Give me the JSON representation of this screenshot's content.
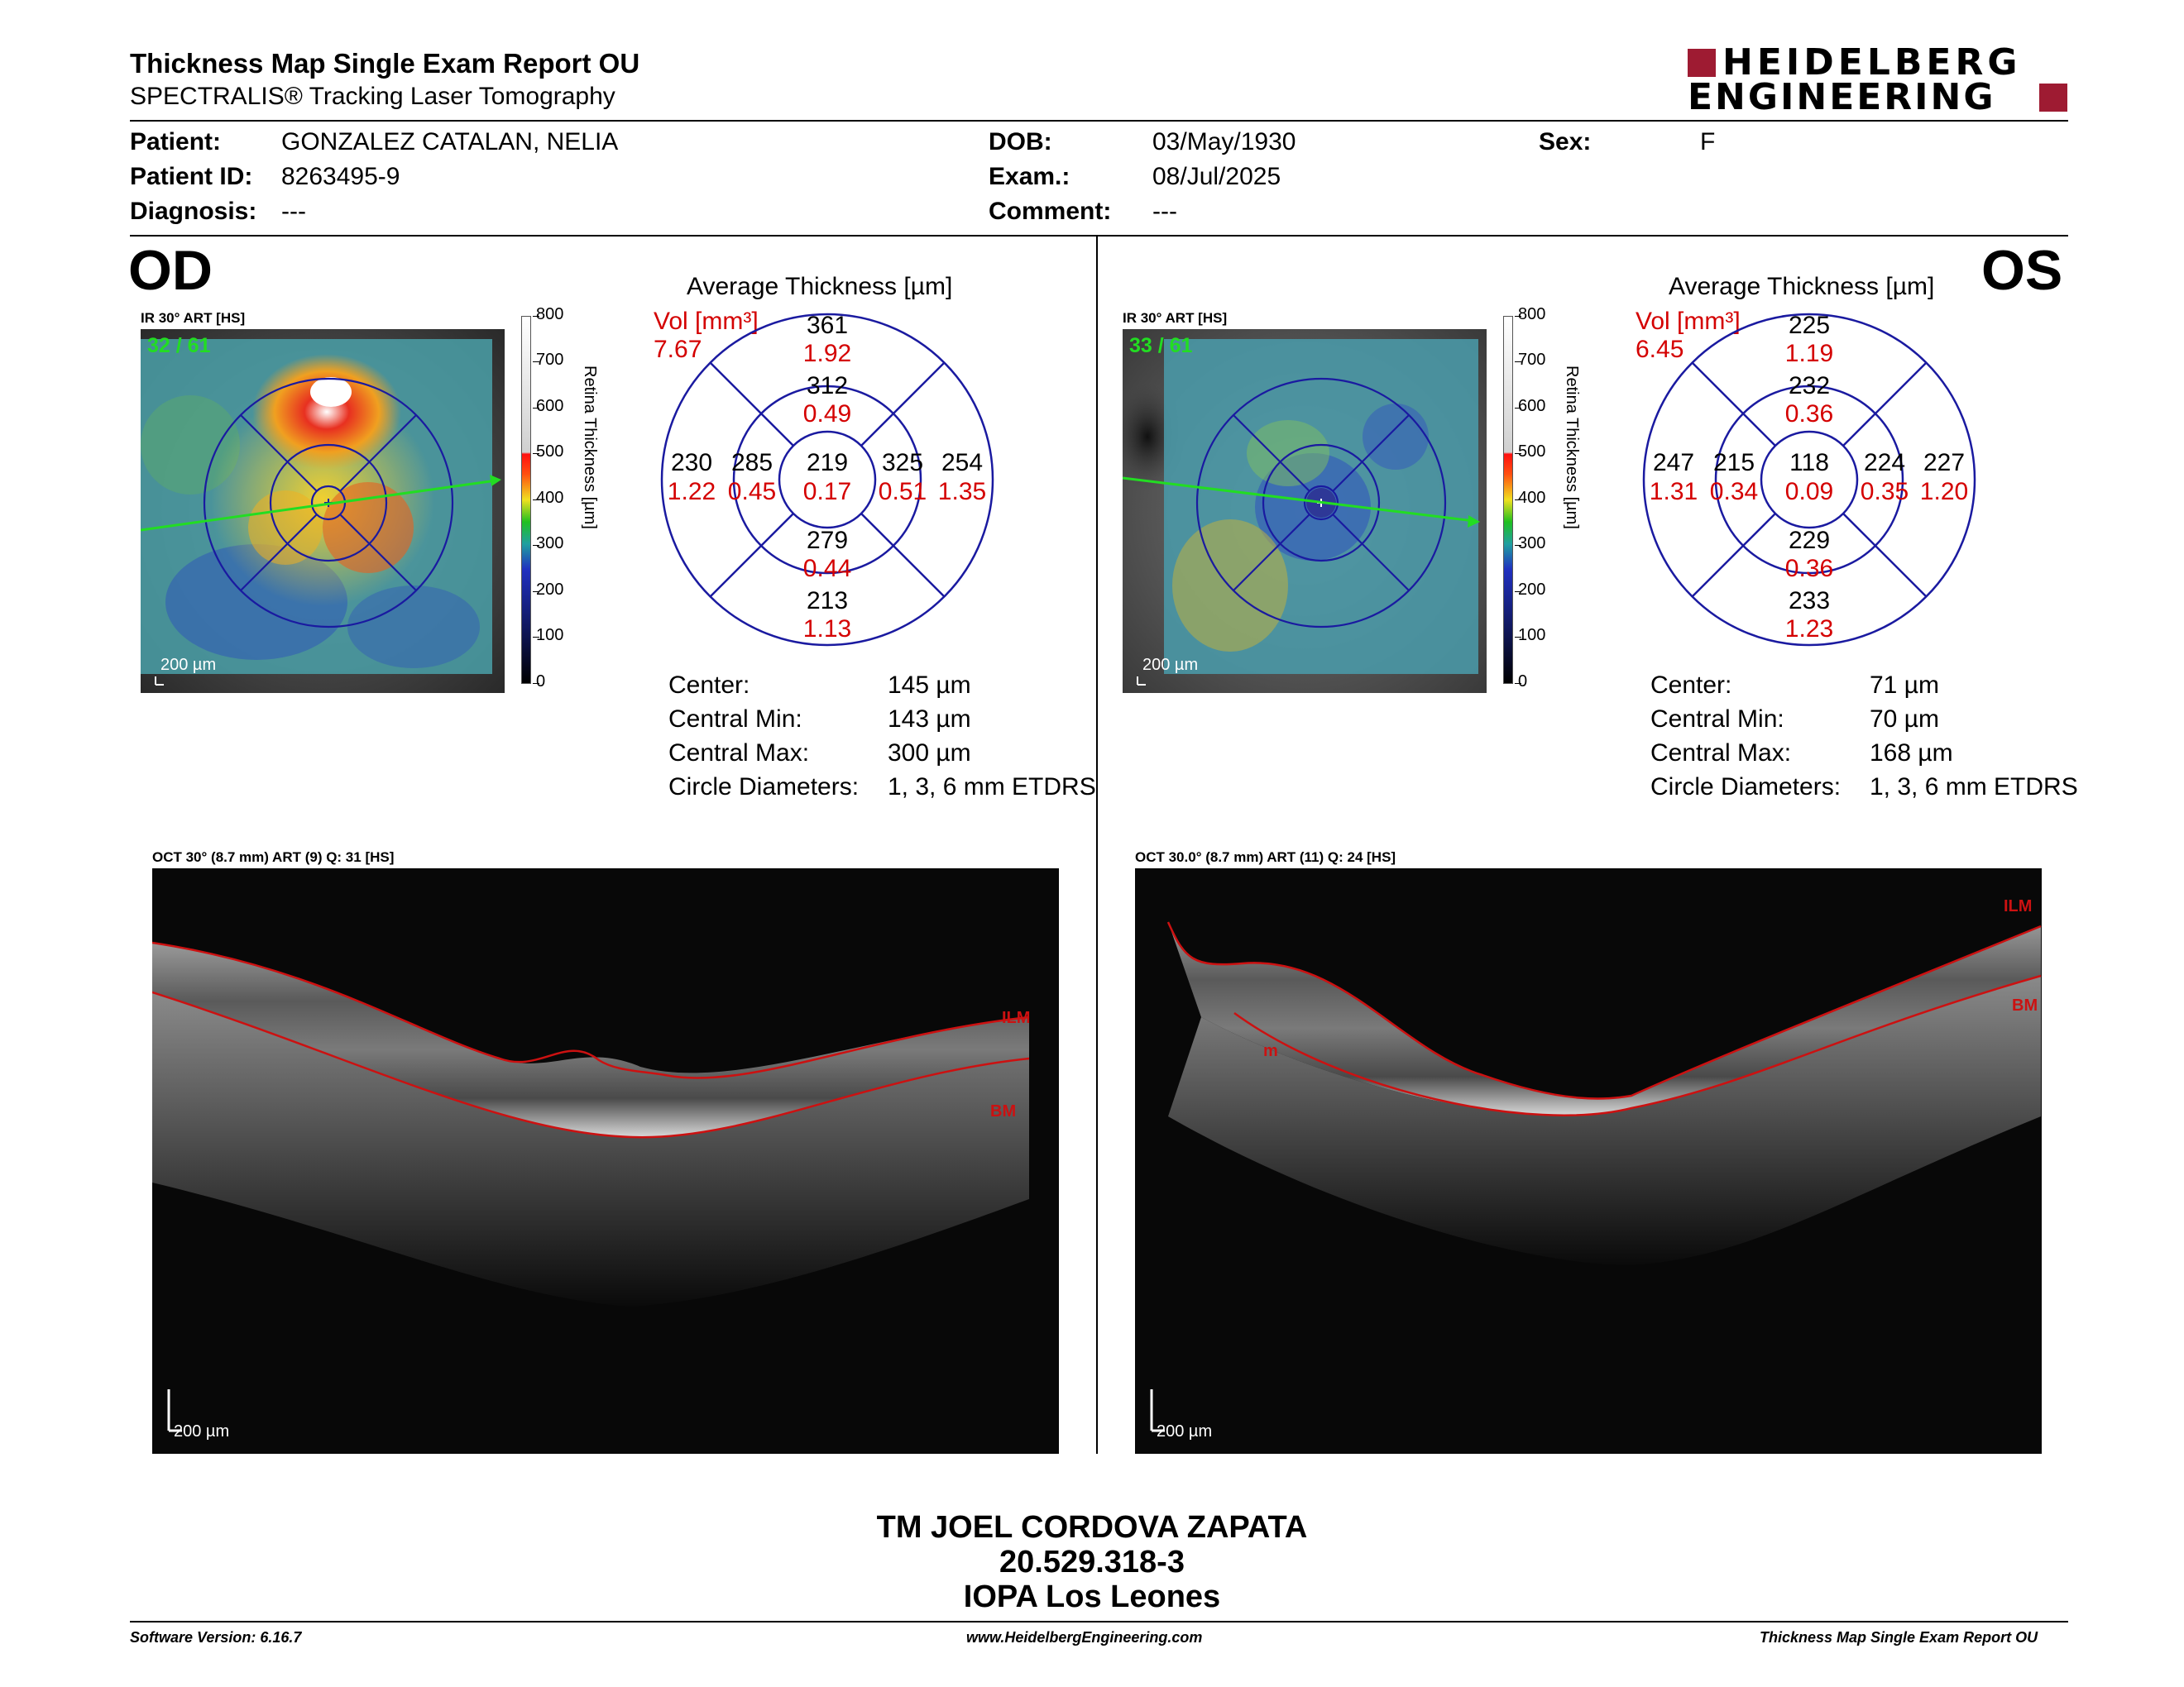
{
  "header": {
    "title": "Thickness Map Single Exam Report OU",
    "subtitle": "SPECTRALIS® Tracking Laser Tomography",
    "logo_top": "HEIDELBERG",
    "logo_bottom": "ENGINEERING"
  },
  "patient": {
    "patient_label": "Patient:",
    "patient_value": "GONZALEZ CATALAN, NELIA",
    "id_label": "Patient ID:",
    "id_value": "8263495-9",
    "diagnosis_label": "Diagnosis:",
    "diagnosis_value": "---",
    "dob_label": "DOB:",
    "dob_value": "03/May/1930",
    "exam_label": "Exam.:",
    "exam_value": "08/Jul/2025",
    "comment_label": "Comment:",
    "comment_value": "---",
    "sex_label": "Sex:",
    "sex_value": "F"
  },
  "od": {
    "eye": "OD",
    "ir_label": "IR 30° ART [HS]",
    "frame": "32 / 61",
    "scale": "200 µm",
    "avg_title": "Average Thickness [µm]",
    "vol_label": "Vol [mm³]",
    "vol_value": "7.67",
    "etdrs": {
      "center": "219",
      "center_vol": "0.17",
      "inner_sup": "312",
      "inner_sup_vol": "0.49",
      "inner_inf": "279",
      "inner_inf_vol": "0.44",
      "inner_temp": "285",
      "inner_temp_vol": "0.45",
      "inner_nas": "325",
      "inner_nas_vol": "0.51",
      "outer_sup": "361",
      "outer_sup_vol": "1.92",
      "outer_inf": "213",
      "outer_inf_vol": "1.13",
      "outer_temp": "230",
      "outer_temp_vol": "1.22",
      "outer_nas": "254",
      "outer_nas_vol": "1.35"
    },
    "stats": [
      {
        "label": "Center:",
        "value": "145 µm"
      },
      {
        "label": "Central Min:",
        "value": "143 µm"
      },
      {
        "label": "Central Max:",
        "value": "300 µm"
      },
      {
        "label": "Circle Diameters:",
        "value": "1, 3, 6 mm ETDRS"
      }
    ],
    "oct_label": "OCT 30° (8.7 mm) ART (9) Q: 31 [HS]",
    "oct_scale": "200 µm",
    "ilm": "ILM",
    "bm": "BM"
  },
  "os": {
    "eye": "OS",
    "ir_label": "IR 30° ART [HS]",
    "frame": "33 / 61",
    "scale": "200 µm",
    "avg_title": "Average Thickness [µm]",
    "vol_label": "Vol [mm³]",
    "vol_value": "6.45",
    "etdrs": {
      "center": "118",
      "center_vol": "0.09",
      "inner_sup": "232",
      "inner_sup_vol": "0.36",
      "inner_inf": "229",
      "inner_inf_vol": "0.36",
      "inner_temp": "224",
      "inner_temp_vol": "0.35",
      "inner_nas": "215",
      "inner_nas_vol": "0.34",
      "outer_sup": "225",
      "outer_sup_vol": "1.19",
      "outer_inf": "233",
      "outer_inf_vol": "1.23",
      "outer_temp": "227",
      "outer_temp_vol": "1.20",
      "outer_nas": "247",
      "outer_nas_vol": "1.31"
    },
    "stats": [
      {
        "label": "Center:",
        "value": "71 µm"
      },
      {
        "label": "Central Min:",
        "value": "70 µm"
      },
      {
        "label": "Central Max:",
        "value": "168 µm"
      },
      {
        "label": "Circle Diameters:",
        "value": "1, 3, 6 mm ETDRS"
      }
    ],
    "oct_label": "OCT 30.0° (8.7 mm) ART (11) Q: 24 [HS]",
    "oct_scale": "200 µm",
    "ilm": "ILM",
    "bm": "BM",
    "m_mark": "m"
  },
  "colorbar": {
    "ticks": [
      "800",
      "700",
      "600",
      "500",
      "400",
      "300",
      "200",
      "100",
      "0"
    ],
    "label": "Retina Thickness [µm]"
  },
  "signature": {
    "name": "TM JOEL CORDOVA ZAPATA",
    "rut": "20.529.318-3",
    "place": "IOPA Los Leones"
  },
  "footer": {
    "software": "Software Version: 6.16.7",
    "website": "www.HeidelbergEngineering.com",
    "report": "Thickness Map Single Exam Report OU"
  },
  "colors": {
    "brand_red": "#9e1b32",
    "vol_red": "#d40000",
    "grid_blue": "#1a1aa0",
    "scan_green": "#22dd22",
    "segment_red": "#cc1111"
  }
}
